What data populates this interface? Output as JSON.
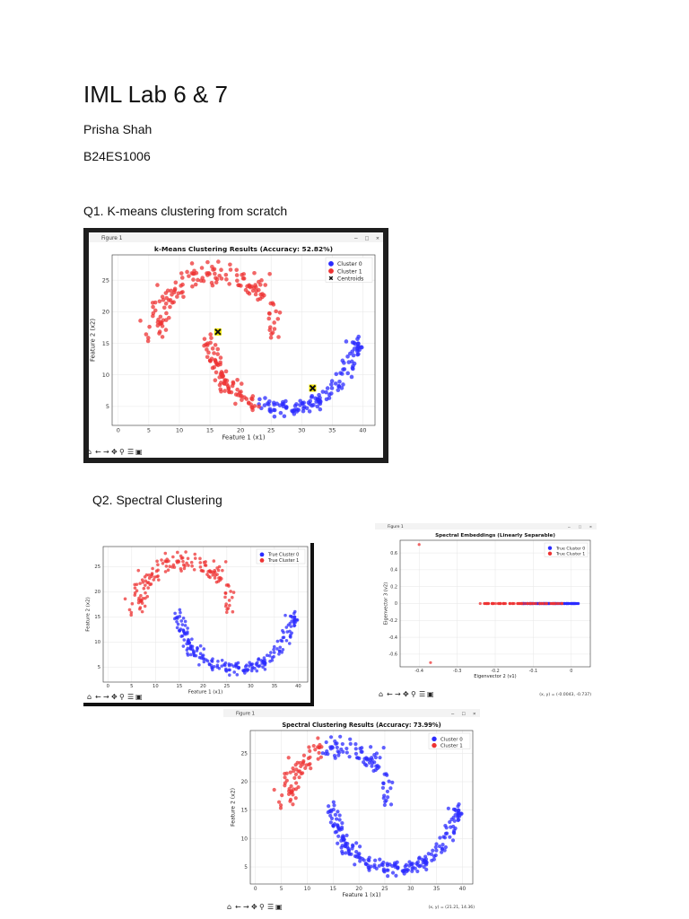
{
  "doc": {
    "title": "IML Lab 6 & 7",
    "author": "Prisha Shah",
    "roll": "B24ES1006",
    "q1": "Q1. K-means clustering from scratch",
    "q2": "Q2. Spectral Clustering"
  },
  "figures": {
    "window_title": "Figure 1",
    "toolbar_icons": [
      "home-icon",
      "back-icon",
      "forward-icon",
      "pan-icon",
      "zoom-icon",
      "configure-icon",
      "save-icon"
    ]
  },
  "chart_data": [
    {
      "id": "kmeans",
      "type": "scatter",
      "title": "k-Means Clustering Results (Accuracy: 52.82%)",
      "xlabel": "Feature 1 (x1)",
      "ylabel": "Feature 2 (x2)",
      "xlim": [
        -1,
        42
      ],
      "ylim": [
        2,
        29
      ],
      "xticks": [
        0,
        5,
        10,
        15,
        20,
        25,
        30,
        35,
        40
      ],
      "yticks": [
        5,
        10,
        15,
        20,
        25
      ],
      "grid": true,
      "legend": "top-right",
      "legend_entries": [
        "Cluster 0",
        "Cluster 1",
        "Centroids"
      ],
      "series": [
        {
          "name": "Cluster 0",
          "color": "#2b2bff",
          "generator": "kmeans_c0"
        },
        {
          "name": "Cluster 1",
          "color": "#ee3333",
          "generator": "kmeans_c1"
        },
        {
          "name": "Centroids",
          "color": "#f2e600",
          "points": [
            [
              16.3,
              16.8
            ],
            [
              31.8,
              7.9
            ]
          ]
        }
      ]
    },
    {
      "id": "true",
      "type": "scatter",
      "title": "",
      "xlabel": "Feature 1 (x1)",
      "ylabel": "Feature 2 (x2)",
      "xlim": [
        -1,
        42
      ],
      "ylim": [
        2,
        29
      ],
      "xticks": [
        0,
        5,
        10,
        15,
        20,
        25,
        30,
        35,
        40
      ],
      "yticks": [
        5,
        10,
        15,
        20,
        25
      ],
      "grid": true,
      "legend": "top-right",
      "legend_entries": [
        "True Cluster 0",
        "True Cluster 1"
      ],
      "series": [
        {
          "name": "True Cluster 0",
          "color": "#2b2bff",
          "generator": "moon_lower"
        },
        {
          "name": "True Cluster 1",
          "color": "#ee3333",
          "generator": "moon_upper"
        }
      ]
    },
    {
      "id": "embed",
      "type": "scatter",
      "title": "Spectral Embeddings (Linearly Separable)",
      "xlabel": "Eigenvector 2 (v1)",
      "ylabel": "Eigenvector 3 (v2)",
      "xlim": [
        -0.45,
        0.05
      ],
      "ylim": [
        -0.75,
        0.75
      ],
      "xticks": [
        -0.4,
        -0.3,
        -0.2,
        -0.1,
        0.0
      ],
      "yticks": [
        -0.6,
        -0.4,
        -0.2,
        0.0,
        0.2,
        0.4,
        0.6
      ],
      "grid": true,
      "legend": "top-right",
      "legend_entries": [
        "True Cluster 0",
        "True Cluster 1"
      ],
      "coord_readout": "(x, y) = (-0.0043, -0.737)",
      "series": [
        {
          "name": "True Cluster 0",
          "color": "#2b2bff",
          "generator": "embed_c0"
        },
        {
          "name": "True Cluster 1",
          "color": "#ee3333",
          "generator": "embed_c1"
        }
      ]
    },
    {
      "id": "spectral",
      "type": "scatter",
      "title": "Spectral Clustering Results (Accuracy: 73.99%)",
      "xlabel": "Feature 1 (x1)",
      "ylabel": "Feature 2 (x2)",
      "xlim": [
        -1,
        42
      ],
      "ylim": [
        2,
        29
      ],
      "xticks": [
        0,
        5,
        10,
        15,
        20,
        25,
        30,
        35,
        40
      ],
      "yticks": [
        5,
        10,
        15,
        20,
        25
      ],
      "grid": true,
      "legend": "top-right",
      "legend_entries": [
        "Cluster 0",
        "Cluster 1"
      ],
      "coord_readout": "(x, y) = (21.21, 14.36)",
      "series": [
        {
          "name": "Cluster 0",
          "color": "#2b2bff",
          "generator": "spectral_c0"
        },
        {
          "name": "Cluster 1",
          "color": "#ee3333",
          "generator": "spectral_c1"
        }
      ]
    }
  ]
}
